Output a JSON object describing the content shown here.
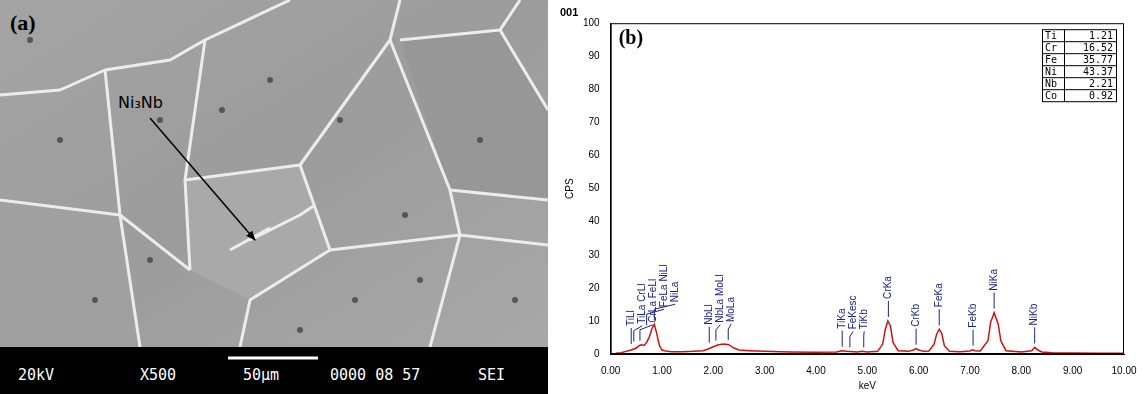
{
  "micrograph": {
    "label": "(a)",
    "annotation": "Ni₃Nb",
    "info_bar": [
      "20kV",
      "X500",
      "50μm",
      "0000 08 57",
      "SEI"
    ]
  },
  "chart_data": {
    "type": "line",
    "label": "(b)",
    "title": "001",
    "x_label": "keV",
    "y_label": "CPS",
    "color": "#cc1111",
    "grid": false,
    "x": [
      0.1,
      0.2,
      0.3,
      0.4,
      0.5,
      0.55,
      0.6,
      0.65,
      0.7,
      0.75,
      0.8,
      0.85,
      0.9,
      0.95,
      1.0,
      1.1,
      1.2,
      1.4,
      1.6,
      1.8,
      1.9,
      2.0,
      2.1,
      2.2,
      2.3,
      2.4,
      2.5,
      2.7,
      3.0,
      3.5,
      4.0,
      4.4,
      4.5,
      4.6,
      4.8,
      4.9,
      5.0,
      5.2,
      5.3,
      5.35,
      5.4,
      5.45,
      5.5,
      5.6,
      5.8,
      5.9,
      5.95,
      6.0,
      6.1,
      6.2,
      6.3,
      6.35,
      6.4,
      6.45,
      6.5,
      6.6,
      6.8,
      7.0,
      7.05,
      7.1,
      7.2,
      7.35,
      7.4,
      7.47,
      7.55,
      7.6,
      7.7,
      8.0,
      8.2,
      8.26,
      8.32,
      8.4,
      8.6,
      9.0,
      9.5,
      10.0
    ],
    "values": [
      0.2,
      0.4,
      0.8,
      1.2,
      1.8,
      2.5,
      2.8,
      2.6,
      3.5,
      5.0,
      7.5,
      9.0,
      6.0,
      2.5,
      1.2,
      0.8,
      0.7,
      0.7,
      0.8,
      1.0,
      1.5,
      2.2,
      2.8,
      3.0,
      2.8,
      1.8,
      1.2,
      1.0,
      0.8,
      0.6,
      0.5,
      0.6,
      1.0,
      0.8,
      0.6,
      0.8,
      0.6,
      0.8,
      3.0,
      7.5,
      10.0,
      8.5,
      3.5,
      1.0,
      0.8,
      1.2,
      1.6,
      1.2,
      0.8,
      0.9,
      3.0,
      6.0,
      7.5,
      6.2,
      2.5,
      0.8,
      0.7,
      0.9,
      1.3,
      1.0,
      0.9,
      4.0,
      9.5,
      12.5,
      9.0,
      4.0,
      1.0,
      0.6,
      1.0,
      2.0,
      1.2,
      0.6,
      0.4,
      0.3,
      0.2,
      0.2
    ],
    "xlim": [
      0,
      10
    ],
    "xticks": [
      {
        "value": 0,
        "label": "0.00"
      },
      {
        "value": 1,
        "label": "1.00"
      },
      {
        "value": 2,
        "label": "2.00"
      },
      {
        "value": 3,
        "label": "3.00"
      },
      {
        "value": 4,
        "label": "4.00"
      },
      {
        "value": 5,
        "label": "5.00"
      },
      {
        "value": 6,
        "label": "6.00"
      },
      {
        "value": 7,
        "label": "7.00"
      },
      {
        "value": 8,
        "label": "8.00"
      },
      {
        "value": 9,
        "label": "9.00"
      },
      {
        "value": 10,
        "label": "10.00"
      }
    ],
    "ylim": [
      0,
      100
    ],
    "yticks": [
      0,
      10,
      20,
      30,
      40,
      50,
      60,
      70,
      80,
      90,
      100
    ],
    "annotations": [
      {
        "x": 0.4,
        "label": "TiLl"
      },
      {
        "x": 0.45,
        "label": "TiLa CrLl"
      },
      {
        "x": 0.57,
        "label": "CrLa FeLl"
      },
      {
        "x": 0.7,
        "label": "FeLa NiLl"
      },
      {
        "x": 0.85,
        "label": "NiLa"
      },
      {
        "x": 1.92,
        "label": "NbLl"
      },
      {
        "x": 2.05,
        "label": "NbLa MoLl"
      },
      {
        "x": 2.29,
        "label": "MoLa"
      },
      {
        "x": 4.51,
        "label": "TiKa"
      },
      {
        "x": 4.66,
        "label": "FeKesc"
      },
      {
        "x": 4.93,
        "label": "TiKb"
      },
      {
        "x": 5.41,
        "label": "CrKa"
      },
      {
        "x": 5.95,
        "label": "CrKb"
      },
      {
        "x": 6.4,
        "label": "FeKa"
      },
      {
        "x": 7.06,
        "label": "FeKb"
      },
      {
        "x": 7.47,
        "label": "NiKa"
      },
      {
        "x": 8.26,
        "label": "NiKb"
      }
    ],
    "composition": {
      "elements": [
        "Ti",
        "Cr",
        "Fe",
        "Ni",
        "Nb",
        "Co"
      ],
      "values": [
        1.21,
        16.52,
        35.77,
        43.37,
        2.21,
        0.92
      ]
    }
  }
}
